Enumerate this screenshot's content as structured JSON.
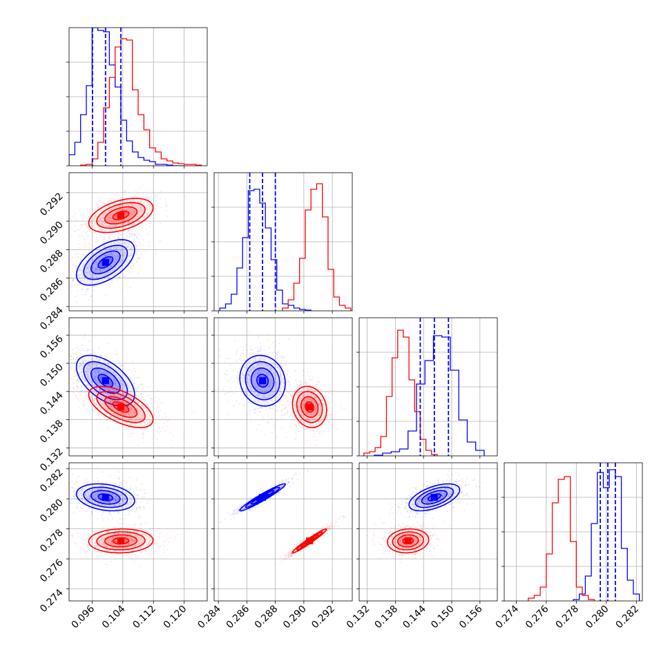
{
  "colors": {
    "series_a": "#0000ff",
    "series_b": "#ff0000",
    "grid": "#b0b0b0",
    "frame": "#000000"
  },
  "chart_data": {
    "type": "corner",
    "grid": true,
    "params": [
      {
        "lim": [
          0.09,
          0.126
        ],
        "ticks": [
          "0.096",
          "0.104",
          "0.112",
          "0.120"
        ],
        "tick_values": [
          0.096,
          0.104,
          0.112,
          0.12
        ]
      },
      {
        "lim": [
          0.2837,
          0.2934
        ],
        "ticks": [
          "0.284",
          "0.286",
          "0.288",
          "0.290",
          "0.292"
        ],
        "tick_values": [
          0.284,
          0.286,
          0.288,
          0.29,
          0.292
        ]
      },
      {
        "lim": [
          0.1303,
          0.1597
        ],
        "ticks": [
          "0.132",
          "0.138",
          "0.144",
          "0.150",
          "0.156"
        ],
        "tick_values": [
          0.132,
          0.138,
          0.144,
          0.15,
          0.156
        ]
      },
      {
        "lim": [
          0.2732,
          0.2824
        ],
        "ticks": [
          "0.274",
          "0.276",
          "0.278",
          "0.280",
          "0.282"
        ],
        "tick_values": [
          0.274,
          0.276,
          0.278,
          0.28,
          0.282
        ]
      }
    ],
    "series": [
      {
        "color": "#0000ff",
        "mean": [
          0.0995,
          0.2871,
          0.1463,
          0.2801
        ],
        "sd": [
          0.0038,
          0.0008,
          0.0027,
          0.00045
        ],
        "corr": {
          "0-1": 0.55,
          "0-2": -0.55,
          "0-3": -0.25,
          "1-2": -0.1,
          "1-3": 0.96,
          "2-3": 0.55
        },
        "quantiles": [
          [
            0.0961,
            0.0995,
            0.1035
          ],
          [
            0.2862,
            0.2871,
            0.288
          ],
          [
            0.1433,
            0.1463,
            0.1493
          ],
          [
            0.2796,
            0.2801,
            0.2806
          ]
        ],
        "hist": [
          {
            "edges": [
              0.09,
              0.0915,
              0.093,
              0.0945,
              0.096,
              0.0975,
              0.099,
              0.1005,
              0.102,
              0.1035,
              0.105,
              0.1065,
              0.108,
              0.1095,
              0.111,
              0.1125,
              0.114,
              0.1155,
              0.117,
              0.1185,
              0.12
            ],
            "counts": [
              0.08,
              0.17,
              0.37,
              0.58,
              1.0,
              0.98,
              0.97,
              0.73,
              0.57,
              0.33,
              0.18,
              0.1,
              0.06,
              0.04,
              0.03,
              0.01,
              0.01,
              0.005,
              0,
              0
            ]
          },
          {
            "edges": [
              0.2841,
              0.2845,
              0.2849,
              0.2853,
              0.2857,
              0.2861,
              0.2865,
              0.2869,
              0.2873,
              0.2877,
              0.2881,
              0.2885,
              0.2889,
              0.2893,
              0.2897,
              0.2901,
              0.2905
            ],
            "counts": [
              0.02,
              0.05,
              0.12,
              0.31,
              0.53,
              0.87,
              0.88,
              0.78,
              0.6,
              0.37,
              0.15,
              0.05,
              0.04,
              0.02,
              0.01,
              0.005
            ]
          },
          {
            "edges": [
              0.1335,
              0.1353,
              0.1371,
              0.1389,
              0.1407,
              0.1425,
              0.1443,
              0.1461,
              0.1479,
              0.1497,
              0.1515,
              0.1533,
              0.1551,
              0.1569
            ],
            "counts": [
              0.005,
              0.02,
              0.03,
              0.05,
              0.18,
              0.52,
              0.69,
              0.87,
              0.86,
              0.62,
              0.26,
              0.1,
              0.04
            ]
          },
          {
            "edges": [
              0.2778,
              0.2782,
              0.2786,
              0.279,
              0.2794,
              0.2798,
              0.2802,
              0.2806,
              0.281,
              0.2814,
              0.2818,
              0.2822
            ],
            "counts": [
              0.01,
              0.05,
              0.18,
              0.56,
              0.93,
              0.82,
              0.95,
              0.9,
              0.38,
              0.15,
              0.05
            ]
          }
        ]
      },
      {
        "color": "#ff0000",
        "mean": [
          0.1035,
          0.2904,
          0.1407,
          0.2772
        ],
        "sd": [
          0.0042,
          0.0006,
          0.0022,
          0.0004
        ],
        "corr": {
          "0-1": 0.45,
          "0-2": -0.6,
          "0-3": 0.05,
          "1-2": -0.15,
          "1-3": 0.97,
          "2-3": 0.1
        },
        "quantiles": [],
        "hist": [
          {
            "edges": [
              0.093,
              0.0945,
              0.096,
              0.0975,
              0.099,
              0.1005,
              0.102,
              0.1035,
              0.105,
              0.1065,
              0.108,
              0.1095,
              0.111,
              0.1125,
              0.114,
              0.1155,
              0.117,
              0.1185,
              0.12,
              0.1215,
              0.123,
              0.1245
            ],
            "counts": [
              0.005,
              0.01,
              0.05,
              0.17,
              0.42,
              0.64,
              0.86,
              0.92,
              0.91,
              0.55,
              0.37,
              0.26,
              0.13,
              0.1,
              0.05,
              0.035,
              0.02,
              0.015,
              0.01,
              0.01,
              0.005
            ]
          },
          {
            "edges": [
              0.2885,
              0.2889,
              0.2893,
              0.2897,
              0.2901,
              0.2905,
              0.2909,
              0.2913,
              0.2917,
              0.2921,
              0.2925,
              0.2929,
              0.2933
            ],
            "counts": [
              0.02,
              0.08,
              0.2,
              0.38,
              0.73,
              0.88,
              0.92,
              0.68,
              0.3,
              0.1,
              0.04,
              0.02
            ]
          },
          {
            "edges": [
              0.1313,
              0.1325,
              0.1337,
              0.1349,
              0.1361,
              0.1373,
              0.1385,
              0.1397,
              0.1409,
              0.1421,
              0.1433,
              0.1445,
              0.1457,
              0.1469
            ],
            "counts": [
              0.02,
              0.03,
              0.06,
              0.14,
              0.43,
              0.71,
              0.91,
              0.86,
              0.55,
              0.32,
              0.12,
              0.04,
              0.01
            ]
          },
          {
            "edges": [
              0.2748,
              0.2752,
              0.2756,
              0.276,
              0.2764,
              0.2768,
              0.2772,
              0.2776,
              0.278,
              0.2784,
              0.2788,
              0.2792
            ],
            "counts": [
              0.02,
              0.04,
              0.1,
              0.34,
              0.71,
              0.88,
              0.9,
              0.43,
              0.1,
              0.04,
              0.01
            ]
          }
        ]
      }
    ]
  }
}
